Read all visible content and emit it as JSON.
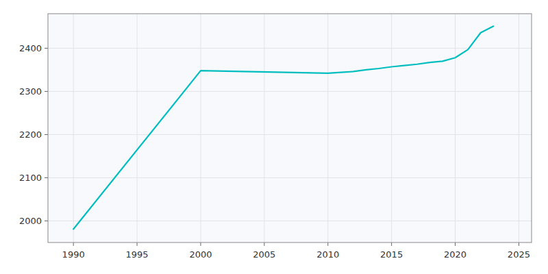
{
  "chart_data": {
    "type": "line",
    "x": [
      1990,
      2000,
      2010,
      2011,
      2012,
      2013,
      2014,
      2015,
      2016,
      2017,
      2018,
      2019,
      2020,
      2021,
      2022,
      2023
    ],
    "values": [
      1981,
      2348,
      2342,
      2344,
      2346,
      2350,
      2353,
      2357,
      2360,
      2363,
      2367,
      2370,
      2378,
      2397,
      2436,
      2451
    ],
    "color": "#00BDBF",
    "xlim": [
      1988,
      2026
    ],
    "ylim": [
      1950,
      2480
    ],
    "xticks": [
      1990,
      1995,
      2000,
      2005,
      2010,
      2015,
      2020,
      2025
    ],
    "yticks": [
      2000,
      2100,
      2200,
      2300,
      2400
    ],
    "grid": true
  }
}
